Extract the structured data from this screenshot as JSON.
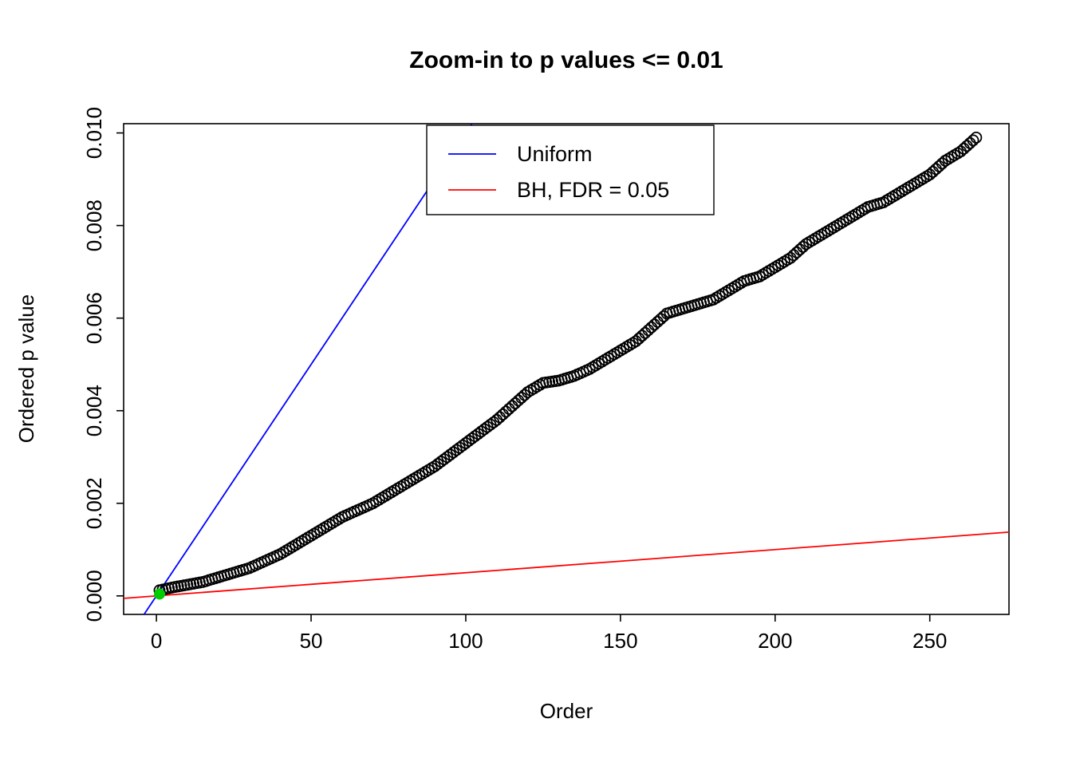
{
  "title": "Zoom-in to p values <= 0.01",
  "x_axis": {
    "label": "Order",
    "ticks": [
      0,
      50,
      100,
      150,
      200,
      250
    ],
    "tick_labels": [
      "0",
      "50",
      "100",
      "150",
      "200",
      "250"
    ]
  },
  "y_axis": {
    "label": "Ordered p value",
    "ticks": [
      0,
      0.002,
      0.004,
      0.006,
      0.008,
      0.01
    ],
    "tick_labels": [
      "0.000",
      "0.002",
      "0.004",
      "0.006",
      "0.008",
      "0.010"
    ]
  },
  "legend": {
    "items": [
      {
        "label": "Uniform",
        "color": "#0000FF"
      },
      {
        "label": "BH, FDR = 0.05",
        "color": "#FF0000"
      }
    ]
  },
  "chart_data": {
    "type": "scatter",
    "title": "Zoom-in to p values <= 0.01",
    "xlabel": "Order",
    "ylabel": "Ordered p value",
    "xlim": [
      -10.6,
      275.6
    ],
    "ylim": [
      -0.0004,
      0.0102
    ],
    "grid": false,
    "legend_position": "top-center",
    "n_points": 265,
    "series_name": "Ordered p values",
    "points_anchors": [
      [
        1,
        0.00012
      ],
      [
        5,
        0.00018
      ],
      [
        10,
        0.00024
      ],
      [
        15,
        0.0003
      ],
      [
        20,
        0.0004
      ],
      [
        25,
        0.0005
      ],
      [
        30,
        0.0006
      ],
      [
        35,
        0.00075
      ],
      [
        40,
        0.0009
      ],
      [
        45,
        0.0011
      ],
      [
        50,
        0.0013
      ],
      [
        55,
        0.0015
      ],
      [
        60,
        0.0017
      ],
      [
        65,
        0.00185
      ],
      [
        70,
        0.002
      ],
      [
        75,
        0.0022
      ],
      [
        80,
        0.0024
      ],
      [
        85,
        0.0026
      ],
      [
        90,
        0.0028
      ],
      [
        95,
        0.00305
      ],
      [
        100,
        0.0033
      ],
      [
        105,
        0.00355
      ],
      [
        110,
        0.0038
      ],
      [
        115,
        0.0041
      ],
      [
        120,
        0.0044
      ],
      [
        125,
        0.0046
      ],
      [
        130,
        0.00465
      ],
      [
        135,
        0.00475
      ],
      [
        140,
        0.0049
      ],
      [
        145,
        0.0051
      ],
      [
        150,
        0.0053
      ],
      [
        155,
        0.0055
      ],
      [
        160,
        0.0058
      ],
      [
        165,
        0.0061
      ],
      [
        170,
        0.0062
      ],
      [
        175,
        0.0063
      ],
      [
        180,
        0.0064
      ],
      [
        185,
        0.0066
      ],
      [
        190,
        0.0068
      ],
      [
        195,
        0.0069
      ],
      [
        200,
        0.0071
      ],
      [
        205,
        0.0073
      ],
      [
        210,
        0.0076
      ],
      [
        215,
        0.0078
      ],
      [
        220,
        0.008
      ],
      [
        225,
        0.0082
      ],
      [
        230,
        0.0084
      ],
      [
        235,
        0.0085
      ],
      [
        240,
        0.0087
      ],
      [
        245,
        0.0089
      ],
      [
        250,
        0.0091
      ],
      [
        255,
        0.0094
      ],
      [
        260,
        0.0096
      ],
      [
        265,
        0.0099
      ]
    ],
    "lines": [
      {
        "name": "Uniform",
        "color": "#0000FF",
        "slope": 0.0001,
        "intercept": 0
      },
      {
        "name": "BH, FDR = 0.05",
        "color": "#FF0000",
        "slope": 5e-06,
        "intercept": 0
      }
    ],
    "highlight_point": {
      "x": 1,
      "y": 4e-05,
      "color": "#00CD00"
    }
  }
}
